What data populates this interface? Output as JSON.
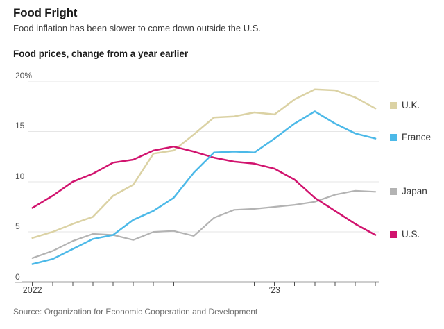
{
  "header": {
    "title": "Food Fright",
    "subtitle": "Food inflation has been slower to come down outside the U.S.",
    "chart_label": "Food prices, change from a year earlier"
  },
  "source": "Source: Organization for Economic Cooperation and Development",
  "chart_data": {
    "type": "line",
    "title": "Food prices, change from a year earlier",
    "x_unit": "month",
    "x": [
      "Jan 2022",
      "Feb 2022",
      "Mar 2022",
      "Apr 2022",
      "May 2022",
      "Jun 2022",
      "Jul 2022",
      "Aug 2022",
      "Sep 2022",
      "Oct 2022",
      "Nov 2022",
      "Dec 2022",
      "Jan 2023",
      "Feb 2023",
      "Mar 2023",
      "Apr 2023",
      "May 2023",
      "Jun 2023"
    ],
    "x_tick_labels": [
      {
        "index": 0,
        "label": "2022"
      },
      {
        "index": 12,
        "label": "’23"
      }
    ],
    "ylim": [
      0,
      20
    ],
    "yticks": [
      {
        "value": 20,
        "label": "20%"
      },
      {
        "value": 15,
        "label": "15"
      },
      {
        "value": 10,
        "label": "10"
      },
      {
        "value": 5,
        "label": "5"
      },
      {
        "value": 0,
        "label": "0"
      }
    ],
    "grid": "horizontal",
    "grid_color": "#e6e6e6",
    "axis_color": "#9c9c9c",
    "tick_color": "#4d4d4d",
    "legend_position": "right",
    "draw_order": [
      2,
      0,
      3,
      1
    ],
    "series": [
      {
        "name": "U.K.",
        "color": "#dbd2a4",
        "values": [
          4.4,
          5.0,
          5.8,
          6.5,
          8.6,
          9.7,
          12.8,
          13.1,
          14.7,
          16.4,
          16.5,
          16.9,
          16.7,
          18.2,
          19.2,
          19.1,
          18.4,
          17.3
        ]
      },
      {
        "name": "France",
        "color": "#4cb9e8",
        "values": [
          1.8,
          2.3,
          3.3,
          4.3,
          4.7,
          6.2,
          7.1,
          8.4,
          10.9,
          12.9,
          13.0,
          12.9,
          14.3,
          15.8,
          17.0,
          15.8,
          14.8,
          14.3
        ]
      },
      {
        "name": "Japan",
        "color": "#b3b3b3",
        "values": [
          2.4,
          3.1,
          4.1,
          4.8,
          4.7,
          4.2,
          5.0,
          5.1,
          4.6,
          6.4,
          7.2,
          7.3,
          7.5,
          7.7,
          8.0,
          8.7,
          9.1,
          9.0
        ]
      },
      {
        "name": "U.S.",
        "color": "#d1136e",
        "values": [
          7.4,
          8.6,
          10.0,
          10.8,
          11.9,
          12.2,
          13.1,
          13.5,
          13.0,
          12.4,
          12.0,
          11.8,
          11.3,
          10.2,
          8.4,
          7.1,
          5.8,
          4.7
        ]
      }
    ]
  }
}
